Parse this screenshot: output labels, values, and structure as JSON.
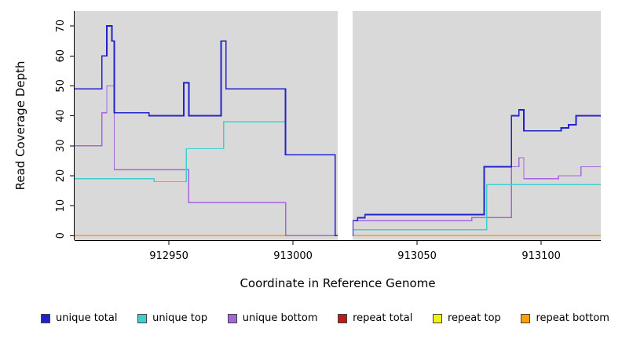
{
  "chart_data": {
    "type": "line",
    "subtype": "step",
    "title": "",
    "xlabel": "Coordinate in Reference Genome",
    "ylabel": "Read Coverage Depth",
    "xlim": [
      912912,
      913124
    ],
    "ylim": [
      0,
      75
    ],
    "x_ticks": [
      912950,
      913000,
      913050,
      913100
    ],
    "y_ticks": [
      0,
      10,
      20,
      30,
      40,
      50,
      60,
      70
    ],
    "grid": "off",
    "panel_bg": "#d9d9d9",
    "gap_region": {
      "x_start": 913018,
      "x_end": 913024
    },
    "legend_position": "bottom",
    "draw_order": [
      3,
      4,
      5,
      2,
      1,
      0
    ],
    "series": [
      {
        "name": "unique total",
        "color": "#2222cc",
        "width": 1.8,
        "points": [
          [
            912912,
            49
          ],
          [
            912923,
            60
          ],
          [
            912925,
            70
          ],
          [
            912927,
            65
          ],
          [
            912928,
            41
          ],
          [
            912942,
            40
          ],
          [
            912956,
            51
          ],
          [
            912958,
            40
          ],
          [
            912971,
            65
          ],
          [
            912973,
            49
          ],
          [
            912997,
            27
          ],
          [
            913017,
            0
          ],
          [
            913024,
            5
          ],
          [
            913026,
            6
          ],
          [
            913029,
            7
          ],
          [
            913077,
            23
          ],
          [
            913088,
            40
          ],
          [
            913091,
            42
          ],
          [
            913093,
            35
          ],
          [
            913108,
            36
          ],
          [
            913111,
            37
          ],
          [
            913114,
            40
          ]
        ]
      },
      {
        "name": "unique top",
        "color": "#3ed0d0",
        "width": 1.3,
        "points": [
          [
            912912,
            19
          ],
          [
            912944,
            18
          ],
          [
            912957,
            29
          ],
          [
            912972,
            38
          ],
          [
            912997,
            27
          ],
          [
            913017,
            0
          ],
          [
            913024,
            2
          ],
          [
            913078,
            17
          ]
        ]
      },
      {
        "name": "unique bottom",
        "color": "#a566dd",
        "width": 1.3,
        "points": [
          [
            912912,
            30
          ],
          [
            912923,
            41
          ],
          [
            912925,
            50
          ],
          [
            912928,
            22
          ],
          [
            912958,
            11
          ],
          [
            912997,
            0
          ],
          [
            913024,
            5
          ],
          [
            913072,
            6
          ],
          [
            913088,
            23
          ],
          [
            913091,
            26
          ],
          [
            913093,
            19
          ],
          [
            913107,
            20
          ],
          [
            913116,
            23
          ]
        ]
      },
      {
        "name": "repeat total",
        "color": "#bf1a1a",
        "width": 1.4,
        "points": [
          [
            912912,
            0
          ]
        ]
      },
      {
        "name": "repeat top",
        "color": "#f2f20f",
        "width": 1.4,
        "points": [
          [
            912912,
            0
          ]
        ]
      },
      {
        "name": "repeat bottom",
        "color": "#ffa000",
        "width": 1.8,
        "points": [
          [
            912912,
            0
          ]
        ]
      }
    ]
  }
}
